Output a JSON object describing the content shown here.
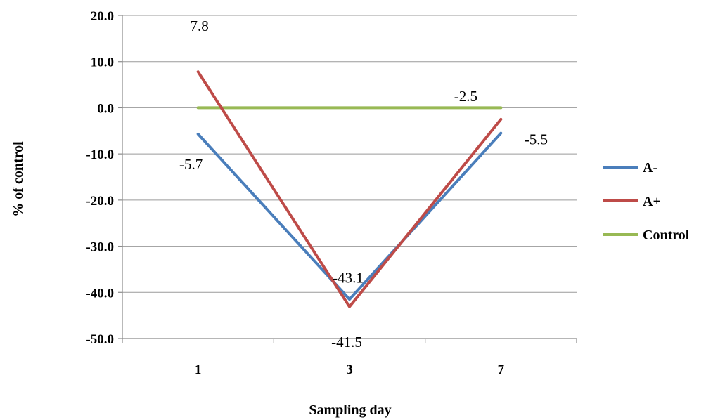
{
  "chart_data": {
    "type": "line",
    "title": "",
    "xlabel": "Sampling day",
    "ylabel": "% of control",
    "categories": [
      "1",
      "3",
      "7"
    ],
    "yticks": [
      "20.0",
      "10.0",
      "0.0",
      "-10.0",
      "-20.0",
      "-30.0",
      "-40.0",
      "-50.0"
    ],
    "ylim": [
      -50,
      20
    ],
    "grid": true,
    "legend_position": "right",
    "series": [
      {
        "name": "A-",
        "color": "#4a7ebb",
        "values": [
          -5.7,
          -41.5,
          -5.5
        ]
      },
      {
        "name": "A+",
        "color": "#be4b48",
        "values": [
          7.8,
          -43.1,
          -2.5
        ]
      },
      {
        "name": "Control",
        "color": "#98b954",
        "values": [
          0.0,
          0.0,
          0.0
        ]
      }
    ],
    "data_labels": [
      {
        "text": "7.8",
        "series": "A+",
        "index": 0
      },
      {
        "text": "-5.7",
        "series": "A-",
        "index": 0
      },
      {
        "text": "-43.1",
        "series": "A+",
        "index": 1
      },
      {
        "text": "-41.5",
        "series": "A-",
        "index": 1
      },
      {
        "text": "-2.5",
        "series": "A+",
        "index": 2
      },
      {
        "text": "-5.5",
        "series": "A-",
        "index": 2
      }
    ]
  }
}
